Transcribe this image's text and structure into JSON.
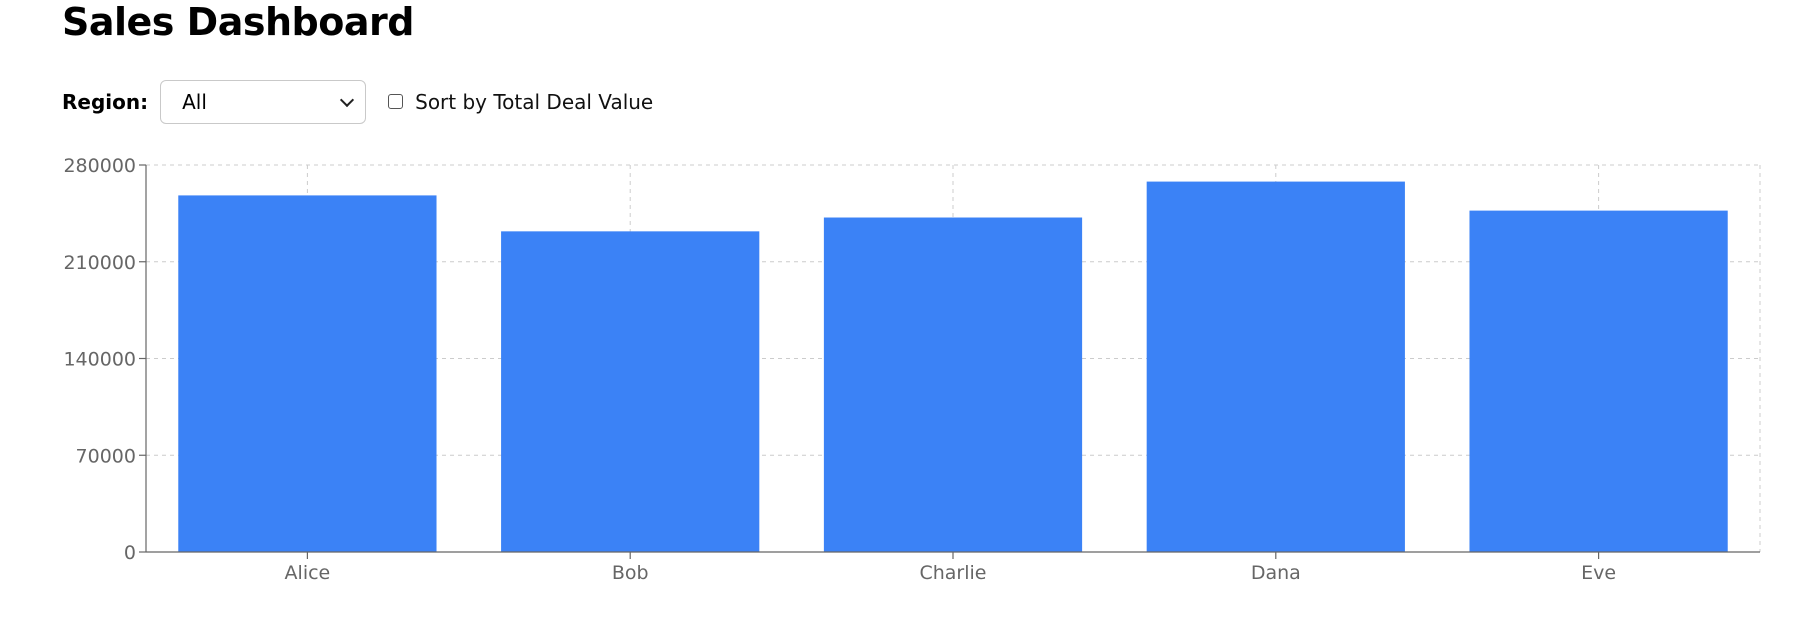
{
  "header": {
    "title": "Sales Dashboard"
  },
  "controls": {
    "region_label": "Region:",
    "region_selected": "All",
    "sort_label": "Sort by Total Deal Value",
    "sort_checked": false
  },
  "colors": {
    "bar": "#3b82f6",
    "grid": "#cccccc",
    "axis": "#666666"
  },
  "chart_data": {
    "type": "bar",
    "categories": [
      "Alice",
      "Bob",
      "Charlie",
      "Dana",
      "Eve"
    ],
    "values": [
      258000,
      232000,
      242000,
      268000,
      247000
    ],
    "title": "",
    "xlabel": "",
    "ylabel": "",
    "ylim": [
      0,
      280000
    ],
    "yticks": [
      0,
      70000,
      140000,
      210000,
      280000
    ],
    "grid": true,
    "legend": "none"
  }
}
